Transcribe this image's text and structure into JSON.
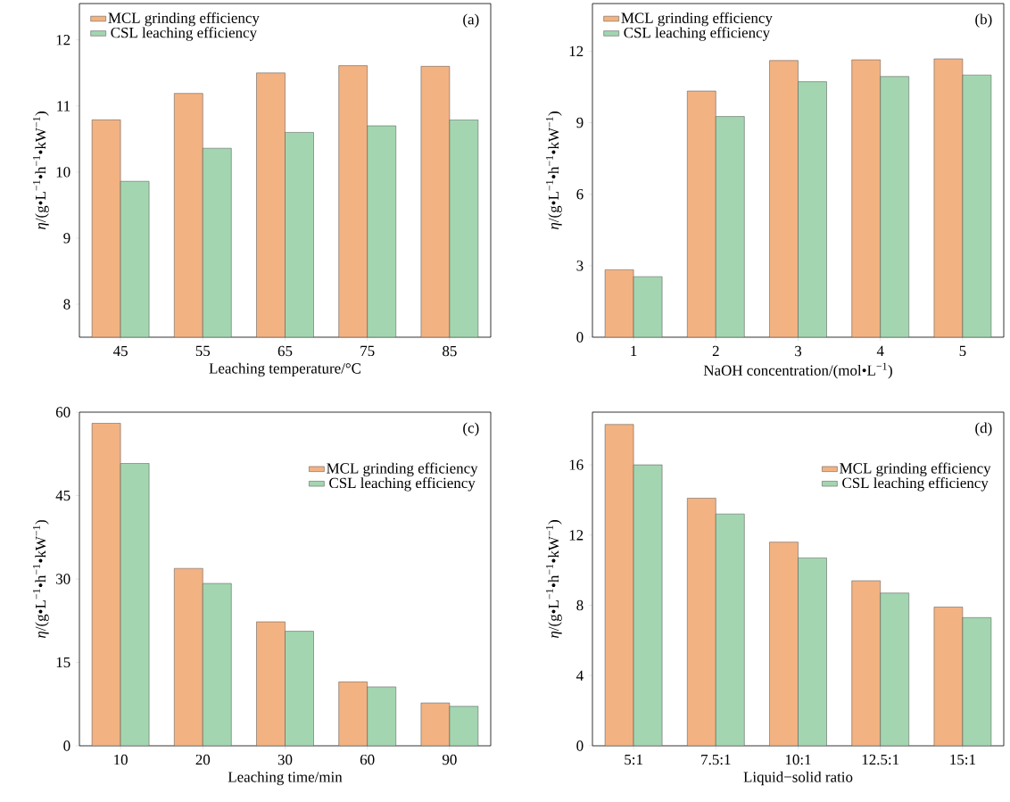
{
  "chart_data": [
    {
      "type": "bar",
      "xlabel": "Leaching temperature/°C",
      "ylabel": "*η*/(g•L$^{−1}$•h$^{−1}$•kW$^{−1}$)",
      "categories": [
        "45",
        "55",
        "65",
        "75",
        "85"
      ],
      "series": [
        {
          "name": "MCL grinding efficiency",
          "color": "#f3b282",
          "values": [
            10.79,
            11.19,
            11.5,
            11.61,
            11.6
          ]
        },
        {
          "name": "CSL  leaching efficiency",
          "color": "#a3d6b0",
          "values": [
            9.86,
            10.36,
            10.6,
            10.7,
            10.79
          ]
        }
      ],
      "ylim": [
        7.5,
        12.55
      ],
      "yticks": [
        8,
        9,
        10,
        11,
        12
      ],
      "legend": "top left",
      "annotations": [
        "(a)"
      ]
    },
    {
      "type": "bar",
      "xlabel": "NaOH concentration/(mol•L$^{−1}$)",
      "ylabel": "*η*/(g•L$^{−1}$•h$^{−1}$•kW$^{−1}$)",
      "categories": [
        "1",
        "2",
        "3",
        "4",
        "5"
      ],
      "series": [
        {
          "name": "MCL grinding efficiency",
          "color": "#f3b282",
          "values": [
            2.83,
            10.33,
            11.61,
            11.64,
            11.68
          ]
        },
        {
          "name": "CSL  leaching efficiency",
          "color": "#a3d6b0",
          "values": [
            2.54,
            9.26,
            10.72,
            10.94,
            11.0
          ]
        }
      ],
      "ylim": [
        0,
        14
      ],
      "yticks": [
        0,
        3,
        6,
        9,
        12
      ],
      "legend": "top left",
      "annotations": [
        "(b)"
      ]
    },
    {
      "type": "bar",
      "xlabel": "Leaching time/min",
      "ylabel": "*η*/(g•L$^{−1}$•h$^{−1}$•kW$^{−1}$)",
      "categories": [
        "10",
        "20",
        "30",
        "60",
        "90"
      ],
      "series": [
        {
          "name": "MCL grinding efficiency",
          "color": "#f3b282",
          "values": [
            58.0,
            31.9,
            22.3,
            11.5,
            7.7
          ]
        },
        {
          "name": "CSL  leaching efficiency",
          "color": "#a3d6b0",
          "values": [
            50.8,
            29.2,
            20.6,
            10.6,
            7.1
          ]
        }
      ],
      "ylim": [
        0,
        60
      ],
      "yticks": [
        0,
        15,
        30,
        45,
        60
      ],
      "legend": "top right",
      "annotations": [
        "(c)"
      ]
    },
    {
      "type": "bar",
      "xlabel": "Liquid−solid ratio",
      "ylabel": "*η*/(g•L$^{−1}$•h$^{−1}$•kW$^{−1}$)",
      "categories": [
        "5:1",
        "7.5:1",
        "10:1",
        "12.5:1",
        "15:1"
      ],
      "series": [
        {
          "name": "MCL grinding efficiency",
          "color": "#f3b282",
          "values": [
            18.3,
            14.1,
            11.6,
            9.4,
            7.9
          ]
        },
        {
          "name": "CSL  leaching efficiency",
          "color": "#a3d6b0",
          "values": [
            16.0,
            13.2,
            10.7,
            8.7,
            7.3
          ]
        }
      ],
      "ylim": [
        0,
        19
      ],
      "yticks": [
        0,
        4,
        8,
        12,
        16
      ],
      "legend": "top right",
      "annotations": [
        "(d)"
      ]
    }
  ]
}
